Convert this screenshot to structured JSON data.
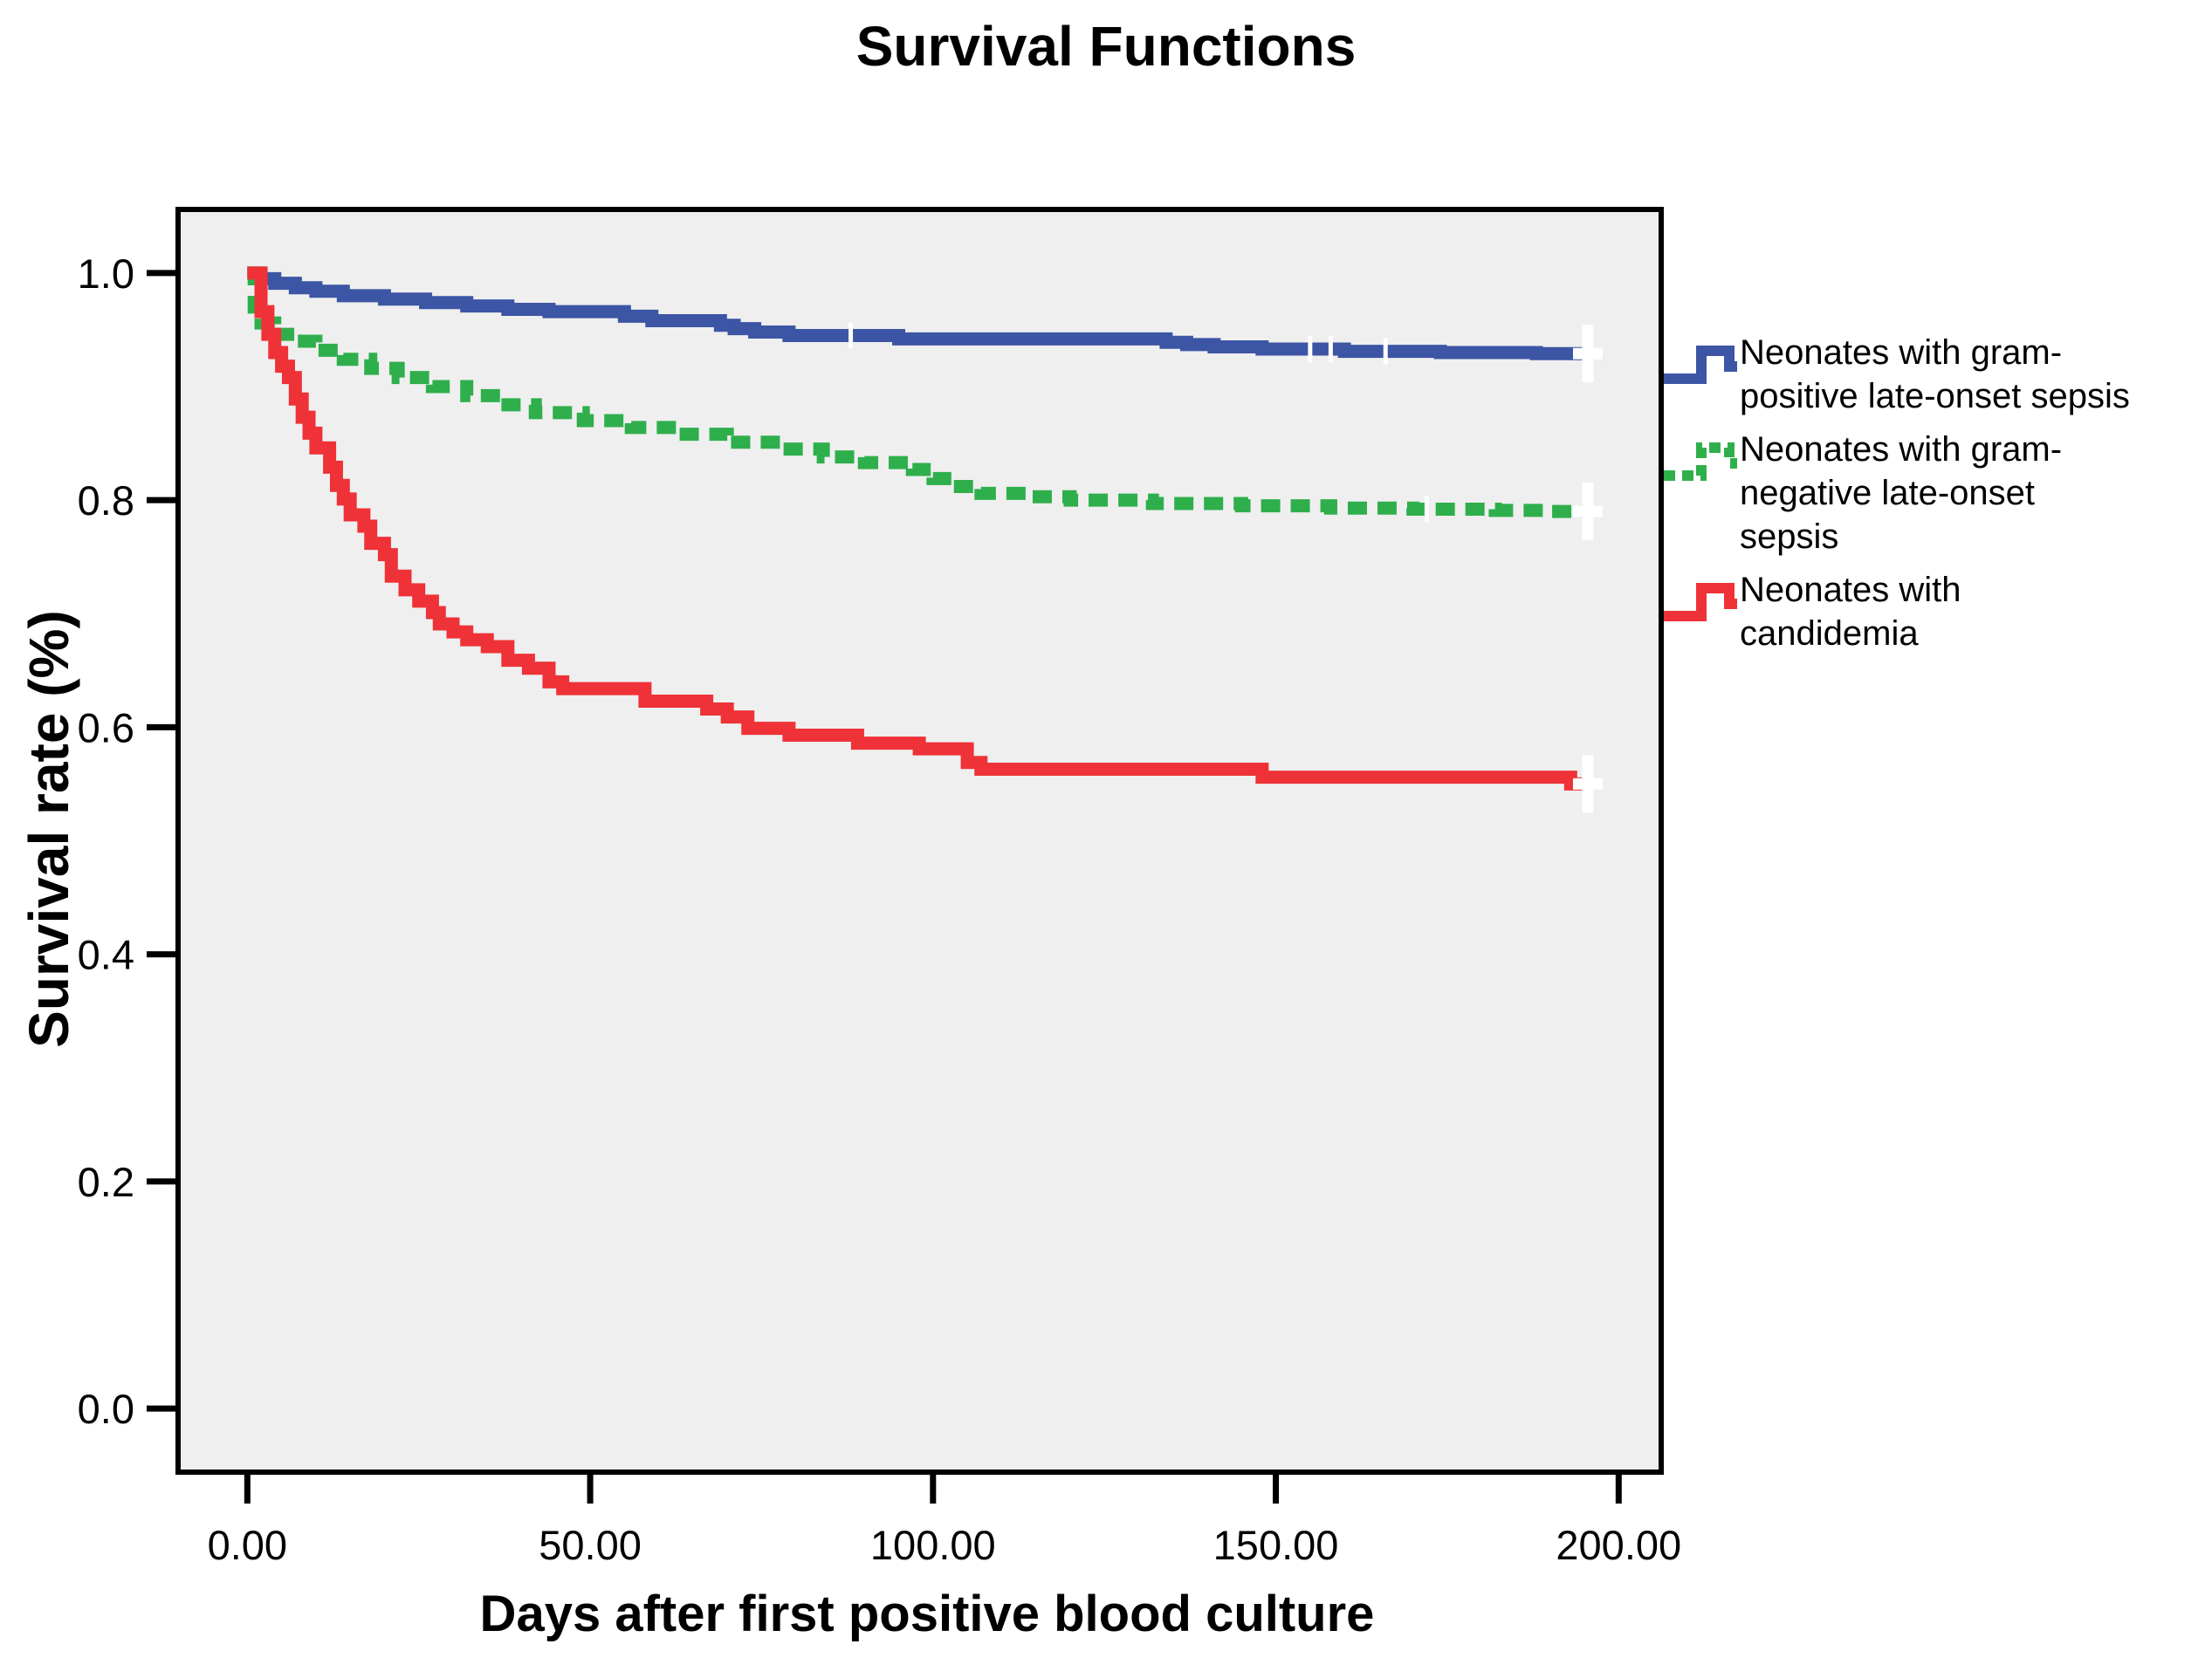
{
  "figure": {
    "background": "#ffffff"
  },
  "chart_data": {
    "type": "line",
    "subtype": "kaplan-meier-step-survival",
    "title": "Survival Functions",
    "xlabel": "Days after first positive blood culture",
    "ylabel": "Survival rate (%)",
    "plot_bg": "#efefef",
    "border_color": "#000000",
    "grid": false,
    "legend_position": "right",
    "x_axis": {
      "range": [
        -10.1,
        206.2
      ],
      "tick_values": [
        0,
        50,
        100,
        150,
        200
      ],
      "tick_labels": [
        "0.00",
        "50.00",
        "100.00",
        "150.00",
        "200.00"
      ]
    },
    "y_axis": {
      "range": [
        -0.056,
        1.056
      ],
      "tick_values": [
        0.0,
        0.2,
        0.4,
        0.6,
        0.8,
        1.0
      ],
      "tick_labels": [
        "0.0",
        "0.2",
        "0.4",
        "0.6",
        "0.8",
        "1.0"
      ]
    },
    "series": [
      {
        "name": "Neonates with gram-positive late-onset sepsis",
        "label_lines": [
          "Neonates with gram-",
          "positive late-onset sepsis"
        ],
        "color": "#3c55a5",
        "line_style": "solid",
        "points": [
          [
            0,
            1.0
          ],
          [
            2,
            0.995
          ],
          [
            4,
            0.991
          ],
          [
            7,
            0.987
          ],
          [
            10,
            0.984
          ],
          [
            14,
            0.98
          ],
          [
            20,
            0.977
          ],
          [
            26,
            0.974
          ],
          [
            32,
            0.971
          ],
          [
            38,
            0.968
          ],
          [
            44,
            0.966
          ],
          [
            55,
            0.962
          ],
          [
            59,
            0.958
          ],
          [
            69,
            0.954
          ],
          [
            71,
            0.951
          ],
          [
            74,
            0.948
          ],
          [
            79,
            0.945
          ],
          [
            95,
            0.942
          ],
          [
            134,
            0.939
          ],
          [
            137,
            0.937
          ],
          [
            141,
            0.935
          ],
          [
            148,
            0.933
          ],
          [
            160,
            0.931
          ],
          [
            174,
            0.93
          ],
          [
            188,
            0.929
          ]
        ],
        "censor_ticks": [
          88,
          155,
          158,
          166
        ],
        "end_day": 195.5,
        "end_censored": true
      },
      {
        "name": "Neonates with gram-negative late-onset sepsis",
        "label_lines": [
          "Neonates with gram-",
          "negative late-onset",
          "sepsis"
        ],
        "color": "#2faf4c",
        "line_style": "dashed",
        "points": [
          [
            0,
            1.0
          ],
          [
            1,
            0.97
          ],
          [
            2,
            0.956
          ],
          [
            4,
            0.946
          ],
          [
            7,
            0.94
          ],
          [
            10,
            0.932
          ],
          [
            14,
            0.924
          ],
          [
            18,
            0.916
          ],
          [
            22,
            0.908
          ],
          [
            27,
            0.9
          ],
          [
            32,
            0.892
          ],
          [
            37,
            0.884
          ],
          [
            42,
            0.877
          ],
          [
            49,
            0.87
          ],
          [
            56,
            0.864
          ],
          [
            63,
            0.858
          ],
          [
            70,
            0.851
          ],
          [
            78,
            0.845
          ],
          [
            84,
            0.838
          ],
          [
            90,
            0.833
          ],
          [
            97,
            0.827
          ],
          [
            100,
            0.819
          ],
          [
            104,
            0.812
          ],
          [
            107,
            0.806
          ],
          [
            114,
            0.803
          ],
          [
            120,
            0.8
          ],
          [
            132,
            0.797
          ],
          [
            145,
            0.795
          ],
          [
            158,
            0.793
          ],
          [
            170,
            0.792
          ],
          [
            182,
            0.791
          ],
          [
            190,
            0.79
          ]
        ],
        "censor_ticks": [
          172
        ],
        "end_day": 195.5,
        "end_censored": true
      },
      {
        "name": "Neonates with candidemia",
        "label_lines": [
          "Neonates with",
          "candidemia"
        ],
        "color": "#ee3237",
        "line_style": "solid",
        "points": [
          [
            0,
            1.0
          ],
          [
            2,
            0.966
          ],
          [
            3,
            0.946
          ],
          [
            4,
            0.93
          ],
          [
            5,
            0.918
          ],
          [
            6,
            0.908
          ],
          [
            7,
            0.889
          ],
          [
            8,
            0.873
          ],
          [
            9,
            0.859
          ],
          [
            10,
            0.846
          ],
          [
            12,
            0.829
          ],
          [
            13,
            0.813
          ],
          [
            14,
            0.801
          ],
          [
            15,
            0.787
          ],
          [
            17,
            0.777
          ],
          [
            18,
            0.762
          ],
          [
            20,
            0.752
          ],
          [
            21,
            0.733
          ],
          [
            23,
            0.721
          ],
          [
            25,
            0.711
          ],
          [
            27,
            0.701
          ],
          [
            28,
            0.691
          ],
          [
            30,
            0.684
          ],
          [
            32,
            0.677
          ],
          [
            35,
            0.671
          ],
          [
            38,
            0.659
          ],
          [
            41,
            0.652
          ],
          [
            44,
            0.64
          ],
          [
            46,
            0.634
          ],
          [
            58,
            0.623
          ],
          [
            67,
            0.616
          ],
          [
            70,
            0.609
          ],
          [
            73,
            0.599
          ],
          [
            79,
            0.593
          ],
          [
            89,
            0.586
          ],
          [
            98,
            0.581
          ],
          [
            105,
            0.569
          ],
          [
            107,
            0.563
          ],
          [
            148,
            0.556
          ],
          [
            193,
            0.55
          ]
        ],
        "censor_ticks": [],
        "end_day": 195.5,
        "end_censored": true
      }
    ]
  }
}
